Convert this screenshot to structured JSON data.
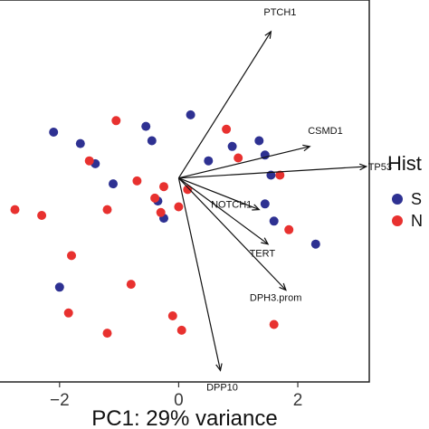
{
  "chart_data": {
    "type": "scatter",
    "title": "",
    "xlabel": "PC1: 29% variance",
    "ylabel": "",
    "xlim": [
      -3.0,
      3.2
    ],
    "ylim": [
      -3.55,
      3.1
    ],
    "x_ticks": [
      -2,
      0,
      2
    ],
    "x_tick_labels": [
      "−2",
      "0",
      "2"
    ],
    "grid": false,
    "legend": {
      "title": "Hist",
      "placement": "right",
      "entries": [
        {
          "label": "S",
          "color": "#2e3192"
        },
        {
          "label": "N",
          "color": "#e8312f"
        }
      ]
    },
    "series": [
      {
        "name": "S",
        "color": "#2e3192",
        "points": [
          [
            -2.1,
            0.8
          ],
          [
            -1.65,
            0.6
          ],
          [
            -1.4,
            0.25
          ],
          [
            -1.1,
            -0.1
          ],
          [
            -0.55,
            0.9
          ],
          [
            -0.45,
            0.65
          ],
          [
            -0.35,
            -0.4
          ],
          [
            -0.25,
            -0.7
          ],
          [
            0.2,
            1.1
          ],
          [
            0.5,
            0.3
          ],
          [
            0.9,
            0.55
          ],
          [
            1.35,
            0.65
          ],
          [
            1.45,
            0.4
          ],
          [
            1.55,
            0.05
          ],
          [
            1.45,
            -0.45
          ],
          [
            1.6,
            -0.75
          ],
          [
            2.3,
            -1.15
          ],
          [
            -2.0,
            -1.9
          ]
        ]
      },
      {
        "name": "N",
        "color": "#e8312f",
        "points": [
          [
            -1.05,
            1.0
          ],
          [
            -1.5,
            0.3
          ],
          [
            -1.2,
            -0.55
          ],
          [
            -0.7,
            -0.05
          ],
          [
            -0.3,
            -0.6
          ],
          [
            -0.4,
            -0.35
          ],
          [
            -0.25,
            -0.15
          ],
          [
            0.0,
            -0.5
          ],
          [
            0.8,
            0.85
          ],
          [
            1.0,
            0.35
          ],
          [
            1.7,
            0.05
          ],
          [
            1.85,
            -0.9
          ],
          [
            0.15,
            -0.2
          ],
          [
            -2.75,
            -0.55
          ],
          [
            -2.3,
            -0.65
          ],
          [
            -1.8,
            -1.35
          ],
          [
            -0.8,
            -1.85
          ],
          [
            -1.85,
            -2.35
          ],
          [
            -1.2,
            -2.7
          ],
          [
            -0.1,
            -2.4
          ],
          [
            0.05,
            -2.65
          ],
          [
            1.6,
            -2.55
          ]
        ]
      }
    ],
    "arrows": [
      {
        "label": "PTCH1",
        "end": [
          1.55,
          2.55
        ]
      },
      {
        "label": "CSMD1",
        "end": [
          2.2,
          0.55
        ]
      },
      {
        "label": "TP53",
        "end": [
          3.15,
          0.2
        ]
      },
      {
        "label": "NOTCH1",
        "end": [
          1.35,
          -0.55
        ]
      },
      {
        "label": "TERT",
        "end": [
          1.5,
          -1.15
        ]
      },
      {
        "label": "DPH3.prom",
        "end": [
          1.8,
          -1.95
        ]
      },
      {
        "label": "DPP10",
        "end": [
          0.7,
          -3.35
        ]
      }
    ]
  }
}
